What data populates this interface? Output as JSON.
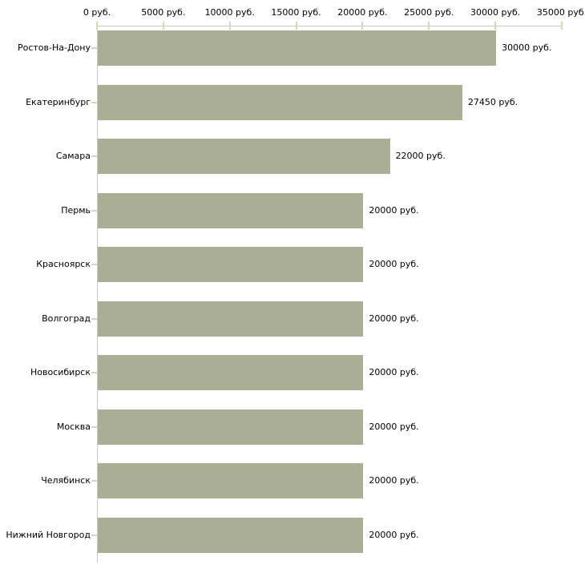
{
  "chart_data": {
    "type": "bar",
    "orientation": "horizontal",
    "title": "",
    "xlabel": "",
    "ylabel": "",
    "categories": [
      "Ростов-На-Дону",
      "Екатеринбург",
      "Самара",
      "Пермь",
      "Красноярск",
      "Волгоград",
      "Новосибирск",
      "Москва",
      "Челябинск",
      "Нижний Новгород"
    ],
    "values": [
      30000,
      27450,
      22000,
      20000,
      20000,
      20000,
      20000,
      20000,
      20000,
      20000
    ],
    "value_labels": [
      "30000 руб.",
      "27450 руб.",
      "22000 руб.",
      "20000 руб.",
      "20000 руб.",
      "20000 руб.",
      "20000 руб.",
      "20000 руб.",
      "20000 руб.",
      "20000 руб."
    ],
    "x_ticks": [
      0,
      5000,
      10000,
      15000,
      20000,
      25000,
      30000,
      35000
    ],
    "x_tick_labels": [
      "0 руб.",
      "5000 руб.",
      "10000 руб.",
      "15000 руб.",
      "20000 руб.",
      "25000 руб.",
      "30000 руб.",
      "35000 руб."
    ],
    "xlim": [
      0,
      35000
    ],
    "grid": false,
    "legend": false,
    "colors": {
      "bar_fill": "#a9ae95",
      "tick_mark": "#d4d8b4",
      "axis_line": "#c9c9c9",
      "text": "#000000",
      "background": "#ffffff"
    }
  }
}
